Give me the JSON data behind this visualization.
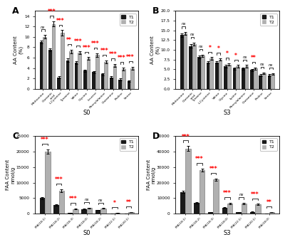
{
  "panel_A": {
    "title": "A",
    "xlabel": "S0",
    "ylabel": "AA Content\n(%)",
    "categories": [
      "Methionine",
      "Glutamic\nacid",
      "L-Cysteine",
      "Tyrosine",
      "Valine",
      "Glycine",
      "Leucine",
      "Phenylalanine",
      "Glutamine",
      "Proline",
      "Serine"
    ],
    "T1": [
      9.0,
      7.5,
      2.2,
      5.5,
      5.0,
      3.5,
      3.2,
      2.8,
      2.2,
      1.8,
      1.5
    ],
    "T2": [
      10.0,
      12.5,
      10.8,
      7.2,
      7.0,
      5.8,
      6.5,
      5.2,
      4.5,
      3.8,
      4.0
    ],
    "T1_err": [
      0.25,
      0.3,
      0.2,
      0.3,
      0.3,
      0.2,
      0.25,
      0.2,
      0.18,
      0.15,
      0.15
    ],
    "T2_err": [
      0.35,
      0.5,
      0.5,
      0.35,
      0.3,
      0.28,
      0.35,
      0.28,
      0.25,
      0.25,
      0.28
    ],
    "sig": [
      "ns",
      "***",
      "***",
      "**",
      "***",
      "***",
      "***",
      "***",
      "***",
      "***",
      "***"
    ],
    "ylim": [
      0,
      15
    ]
  },
  "panel_B": {
    "title": "B",
    "xlabel": "S3",
    "ylabel": "AA Content\n(%)",
    "categories": [
      "Methionine",
      "Glutamic\nacid",
      "Tyrosine",
      "L-Cysteine",
      "Valine",
      "Glycine",
      "Lysine",
      "Phenylalanine",
      "Glutamine",
      "Proline",
      "Serine"
    ],
    "T1": [
      13.8,
      11.0,
      8.2,
      6.8,
      6.8,
      5.8,
      5.2,
      5.2,
      4.8,
      3.5,
      3.5
    ],
    "T2": [
      14.2,
      11.5,
      8.5,
      7.8,
      7.5,
      6.2,
      5.8,
      5.8,
      5.2,
      4.0,
      3.8
    ],
    "T1_err": [
      0.4,
      0.4,
      0.3,
      0.3,
      0.3,
      0.3,
      0.3,
      0.3,
      0.3,
      0.22,
      0.22
    ],
    "T2_err": [
      0.4,
      0.4,
      0.3,
      0.3,
      0.3,
      0.3,
      0.3,
      0.3,
      0.3,
      0.22,
      0.22
    ],
    "sig": [
      "ns",
      "ns",
      "ns",
      "*",
      "*",
      "*",
      "*",
      "ns",
      "**",
      "ns",
      "ns"
    ],
    "ylim": [
      0,
      20
    ]
  },
  "panel_C": {
    "title": "C",
    "xlabel": "S0",
    "ylabel": "FAA Content\nnmol/g",
    "categories": [
      "FFA(18:1)",
      "FFA(18:2)",
      "FFA(18:3)",
      "FFA(18:0)",
      "FFA(18:2)",
      "FFA(22:1)",
      "FFA(20:1)"
    ],
    "T1": [
      5000,
      2800,
      200,
      1500,
      1200,
      150,
      150
    ],
    "T2": [
      20000,
      7500,
      1500,
      1800,
      1700,
      350,
      500
    ],
    "T1_err": [
      300,
      200,
      30,
      120,
      100,
      25,
      25
    ],
    "T2_err": [
      700,
      450,
      120,
      120,
      110,
      40,
      50
    ],
    "sig": [
      "***",
      "***",
      "***",
      "ns",
      "ns",
      "*",
      "**"
    ],
    "ylim": [
      0,
      25000
    ]
  },
  "panel_D": {
    "title": "D",
    "xlabel": "S3",
    "ylabel": "FAA Content\nnmol/g",
    "categories": [
      "FFA(18:1)",
      "FFA(18:2)",
      "FFA(18:3)",
      "FFA(18:0)",
      "FFA(22:1)",
      "FFA(20:1)",
      "FFA(18:0)"
    ],
    "T1": [
      14000,
      7000,
      1000,
      4000,
      1000,
      1200,
      300
    ],
    "T2": [
      42000,
      28000,
      22000,
      6500,
      6500,
      6000,
      1200
    ],
    "T1_err": [
      600,
      400,
      100,
      300,
      100,
      120,
      40
    ],
    "T2_err": [
      1500,
      900,
      800,
      400,
      400,
      350,
      80
    ],
    "sig": [
      "***",
      "***",
      "***",
      "***",
      "ns",
      "***",
      "**"
    ],
    "ylim": [
      0,
      50000
    ]
  },
  "color_T1": "#1a1a1a",
  "color_T2": "#b0b0b0",
  "sig_color": "#ff0000",
  "bar_width": 0.38,
  "background": "#ffffff"
}
